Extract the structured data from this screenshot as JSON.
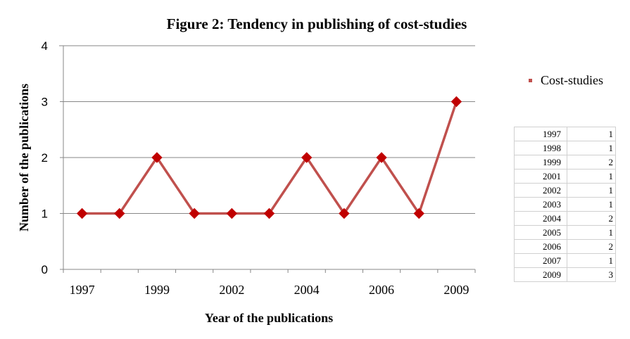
{
  "chart_data": {
    "type": "line",
    "title": "Figure 2: Tendency in publishing of cost-studies",
    "xlabel": "Year of the publications",
    "ylabel": "Number of the publications",
    "x": [
      "1997",
      "1998",
      "1999",
      "2001",
      "2002",
      "2003",
      "2004",
      "2005",
      "2006",
      "2007",
      "2009"
    ],
    "x_tick_labels": [
      "1997",
      "1999",
      "2002",
      "2004",
      "2006",
      "2009"
    ],
    "ylim": [
      0,
      4
    ],
    "y_ticks": [
      "0",
      "1",
      "2",
      "3",
      "4"
    ],
    "grid": true,
    "legend_position": "right",
    "series": [
      {
        "name": "Cost-studies",
        "values": [
          1,
          1,
          2,
          1,
          1,
          1,
          2,
          1,
          2,
          1,
          3
        ],
        "color": "#c0504d",
        "marker_color": "#c00000",
        "marker": "diamond"
      }
    ],
    "table": [
      [
        "1997",
        "1"
      ],
      [
        "1998",
        "1"
      ],
      [
        "1999",
        "2"
      ],
      [
        "2001",
        "1"
      ],
      [
        "2002",
        "1"
      ],
      [
        "2003",
        "1"
      ],
      [
        "2004",
        "2"
      ],
      [
        "2005",
        "1"
      ],
      [
        "2006",
        "2"
      ],
      [
        "2007",
        "1"
      ],
      [
        "2009",
        "3"
      ]
    ]
  }
}
